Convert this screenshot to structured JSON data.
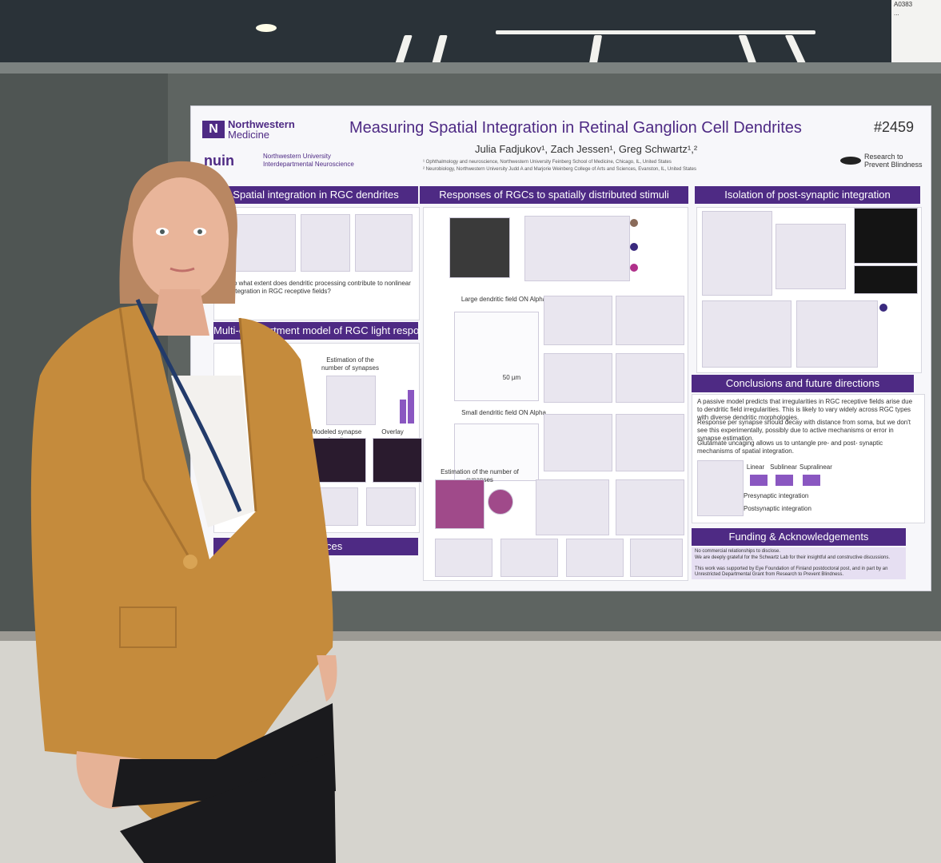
{
  "booth_sign": {
    "lines": [
      "A0383",
      "..."
    ]
  },
  "poster": {
    "institution": {
      "logo_line1": "Northwestern",
      "logo_line2": "Medicine",
      "nuin": "nuin",
      "nuin_line1": "Northwestern University",
      "nuin_line2": "Interdepartmental Neuroscience"
    },
    "title": "Measuring Spatial Integration in Retinal Ganglion Cell Dendrites",
    "poster_number": "#2459",
    "authors": "Julia Fadjukov¹, Zach Jessen¹, Greg Schwartz¹,²",
    "affiliations": [
      "¹ Ophthalmology and neuroscience, Northwestern University Feinberg School of Medicine, Chicago, IL, United States",
      "² Neurobiology, Northwestern University Judd A and Marjorie Weinberg College of Arts and Sciences, Evanston, IL, United States"
    ],
    "sponsor": {
      "line1": "Research to",
      "line2": "Prevent Blindness"
    },
    "sections": {
      "spatial": "Spatial integration in RGC dendrites",
      "responses": "Responses of RGCs to spatially distributed stimuli",
      "isolation": "Isolation of post-synaptic integration",
      "multi": "Multi-compartment model of RGC light responses",
      "conclusions": "Conclusions and future directions",
      "funding": "Funding & Acknowledgements",
      "references": "References"
    },
    "question": "To what extent does dendritic processing contribute to nonlinear integration in RGC receptive fields?",
    "labels": {
      "large_cell": "Large dendritic field ON Alpha",
      "small_cell": "Small dendritic field ON Alpha",
      "syn_estimation": "Estimation of the number of synapses",
      "modeled_density": "Modeled synapse density",
      "overlay": "Overlay",
      "scale_50": "50 µm",
      "row_presynaptic": "Presynaptic integration",
      "row_postsynaptic": "Postsynaptic integration",
      "col_linear": "Linear",
      "col_sublinear": "Sublinear",
      "col_supralinear": "Supralinear"
    },
    "conclusions": [
      "A passive model predicts that irregularities in RGC receptive fields arise due to dendritic field irregularities. This is likely to vary widely across RGC types with diverse dendritic morphologies.",
      "Response per synapse should decay with distance from soma, but we don't see this experimentally, possibly due to active mechanisms or error in synapse estimation.",
      "Glutamate uncaging allows us to untangle pre- and post- synaptic mechanisms of spatial integration."
    ],
    "funding": [
      "No commercial relationships to disclose.",
      "We are deeply grateful for the Schwartz Lab for their insightful and constructive discussions.",
      "This work was supported by Eye Foundation of Finland postdoctoral post, and in part by an Unrestricted Departmental Grant from Research to Prevent Blindness."
    ]
  },
  "colors": {
    "purple": "#4e2a84",
    "jacket": "#c58b3c",
    "poster_bg": "#f7f7fa"
  }
}
